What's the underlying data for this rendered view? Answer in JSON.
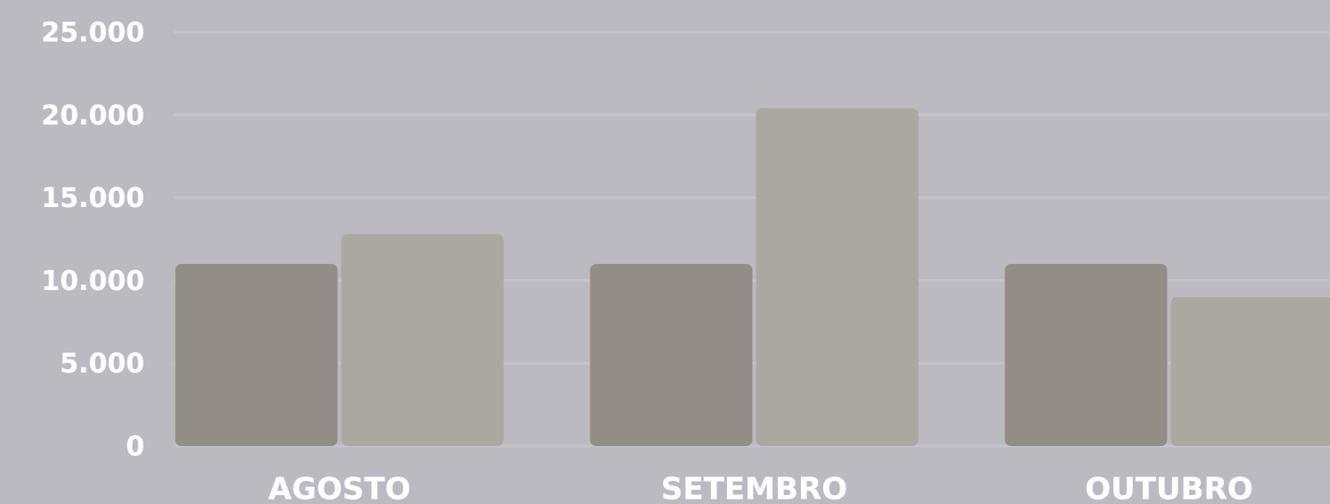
{
  "chart_data": {
    "type": "bar",
    "categories": [
      "AGOSTO",
      "SETEMBRO",
      "OUTUBRO"
    ],
    "series": [
      {
        "color": "#938d87",
        "values": [
          11000,
          11000,
          11000
        ]
      },
      {
        "color": "#aba8a1",
        "values": [
          12800,
          20400,
          9000
        ]
      }
    ],
    "ylim": [
      0,
      26000
    ],
    "yticks": [
      0,
      {
        "value": 5000,
        "label": "5.000"
      },
      {
        "value": 10000,
        "label": "10.000"
      },
      {
        "value": 15000,
        "label": "15.000"
      },
      {
        "value": 20000,
        "label": "20.000"
      },
      {
        "value": 25000,
        "label": "25.000"
      }
    ],
    "grid": true
  }
}
